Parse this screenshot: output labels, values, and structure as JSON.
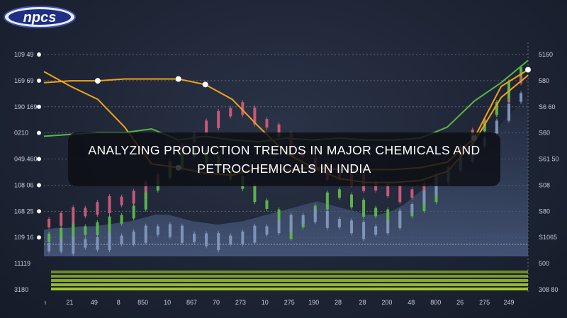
{
  "logo": {
    "text": "npcs"
  },
  "banner": {
    "line1": "ANALYZING PRODUCTION TRENDS IN MAJOR CHEMICALS AND",
    "line2": "PETROCHEMICALS IN INDIA"
  },
  "colors": {
    "background": "#1d2434",
    "orange": "#f0a21a",
    "green": "#5bb349",
    "pink": "#c8587a",
    "blue": "#7d94b8",
    "volume": "#b8e02a",
    "axis_text": "#c9cfdb"
  },
  "chart_data": {
    "type": "line",
    "title": "",
    "xlabel": "",
    "ylabel": "",
    "grid": true,
    "x_tick_labels": [
      "ı",
      "21",
      "49",
      "8",
      "850",
      "10",
      "867",
      "70",
      "273",
      "10",
      "275",
      "190",
      "28",
      "28",
      "200",
      "48",
      "800",
      "26",
      "275",
      "249"
    ],
    "y_tick_labels_left": [
      "109 49",
      "169 69",
      "190 169",
      "0210",
      "049.460",
      "108 06",
      "168 25",
      "109 16",
      "11119",
      "3180"
    ],
    "y_tick_labels_right": [
      "5160",
      "580",
      "S6 60",
      "S60",
      "S61 50",
      "S08",
      "S80",
      "S1065",
      "500",
      "308 80"
    ],
    "series": [
      {
        "name": "orange",
        "values": [
          100,
          92,
          85,
          70,
          50,
          48,
          45,
          44,
          48,
          47,
          48,
          47,
          47,
          47,
          48,
          51,
          64,
          92,
          101
        ]
      },
      {
        "name": "orange-upper",
        "values": [
          94,
          95,
          95,
          96,
          96,
          96,
          93,
          85,
          70,
          56,
          48,
          42,
          40,
          40,
          41,
          46,
          62,
          86,
          98
        ]
      },
      {
        "name": "green",
        "values": [
          65,
          66,
          67,
          67,
          69,
          63,
          65,
          63,
          62,
          64,
          63,
          64,
          63,
          63,
          64,
          70,
          84,
          94,
          106
        ]
      }
    ],
    "candles": {
      "pink": [
        18,
        20,
        22,
        24,
        26,
        28,
        30,
        32,
        36,
        42,
        48,
        56,
        64,
        70,
        74,
        78,
        80,
        76,
        72,
        68,
        62,
        56,
        50,
        46,
        44,
        42,
        40,
        38,
        36,
        34,
        34,
        36,
        40,
        46,
        56,
        64,
        72,
        80,
        88,
        96
      ],
      "green": [
        10,
        12,
        13,
        14,
        15,
        17,
        20,
        24,
        30,
        38,
        46,
        52,
        56,
        54,
        50,
        44,
        40,
        34,
        28,
        22,
        14,
        18,
        24,
        30,
        34,
        30,
        26,
        24,
        22,
        20,
        24,
        28,
        34,
        42,
        52,
        62,
        70,
        80,
        90,
        100
      ],
      "blue": [
        5,
        6,
        6,
        7,
        7,
        8,
        9,
        10,
        12,
        14,
        14,
        12,
        10,
        9,
        8,
        9,
        10,
        12,
        14,
        16,
        18,
        20,
        22,
        20,
        18,
        16,
        14,
        14,
        16,
        20,
        26,
        32,
        38,
        44,
        50,
        56,
        62,
        70,
        78,
        86
      ]
    },
    "markers": [
      {
        "series": "orange-upper",
        "index": 2
      },
      {
        "series": "orange-upper",
        "index": 5
      },
      {
        "series": "orange-upper",
        "index": 6
      },
      {
        "series": "orange",
        "index": 5
      },
      {
        "series": "orange",
        "index": 10
      },
      {
        "series": "orange",
        "index": 16
      },
      {
        "series": "orange",
        "index": 18
      }
    ]
  }
}
